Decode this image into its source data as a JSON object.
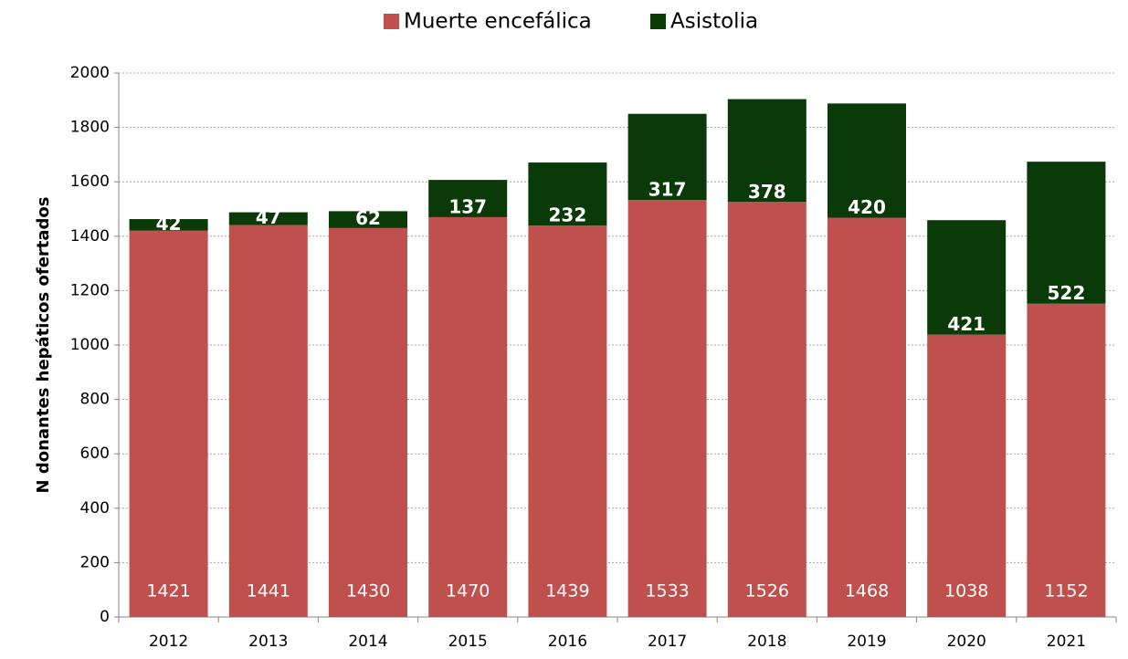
{
  "chart_data": {
    "type": "stacked_bar",
    "y_axis_label": "N donantes hepáticos ofertados",
    "categories": [
      "2012",
      "2013",
      "2014",
      "2015",
      "2016",
      "2017",
      "2018",
      "2019",
      "2020",
      "2021"
    ],
    "series": [
      {
        "name": "Muerte encefálica",
        "color": "#c0504d",
        "values": [
          1421,
          1441,
          1430,
          1470,
          1439,
          1533,
          1526,
          1468,
          1038,
          1152
        ]
      },
      {
        "name": "Asistolia",
        "color": "#0a3a08",
        "values": [
          42,
          47,
          62,
          137,
          232,
          317,
          378,
          420,
          421,
          522
        ]
      }
    ],
    "ylim": [
      0,
      2000
    ],
    "yticks": [
      0,
      200,
      400,
      600,
      800,
      1000,
      1200,
      1400,
      1600,
      1800,
      2000
    ],
    "grid": true,
    "legend": "top"
  }
}
